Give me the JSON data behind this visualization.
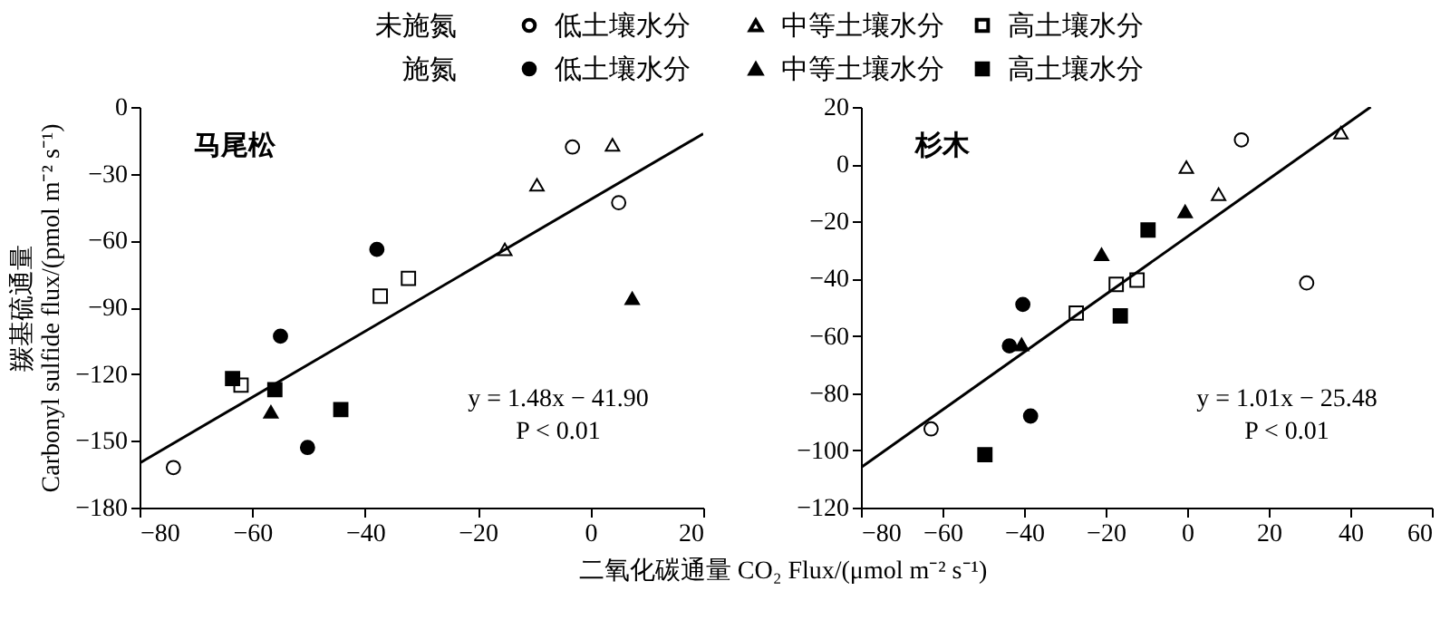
{
  "chart_data": [
    {
      "type": "scatter",
      "title": "马尾松",
      "ylabel": "羰基硫通量\nCarbonyl sulfide flux/(pmol m⁻² s⁻¹)",
      "xlabel": "二氧化碳通量 CO₂ Flux/(μmol m⁻² s⁻¹)",
      "xlim": [
        -80,
        20
      ],
      "xticks": [
        -80,
        -60,
        -40,
        -20,
        0,
        20
      ],
      "ylim": [
        -180,
        0
      ],
      "yticks": [
        -180,
        -150,
        -120,
        -90,
        -60,
        -30,
        0
      ],
      "grid": false,
      "legend": "top",
      "annotations": [
        "y = 1.48x − 41.90",
        "P < 0.01",
        "未施氮",
        "施氮"
      ],
      "series": [
        {
          "name": "低土壤水分",
          "marker": "circle",
          "color": "#ffffff",
          "x": [
            -74,
            -3.2,
            5
          ],
          "values": [
            -162,
            -18,
            -43
          ]
        },
        {
          "name": "中等土壤水分",
          "marker": "triangle",
          "color": "#ffffff",
          "x": [
            -15.2,
            -9.5,
            3.9
          ],
          "values": [
            -64,
            -35,
            -17
          ]
        },
        {
          "name": "高土壤水分",
          "marker": "square",
          "color": "#ffffff",
          "x": [
            -62,
            -37.3,
            -32.3
          ],
          "values": [
            -125,
            -85,
            -77
          ]
        },
        {
          "name": "低土壤水分",
          "marker": "circle",
          "color": "#000000",
          "x": [
            -55,
            -37.9,
            -50.2
          ],
          "values": [
            -103,
            -64,
            -153
          ]
        },
        {
          "name": "中等土壤水分",
          "marker": "triangle",
          "color": "#000000",
          "x": [
            -56.7,
            7.4
          ],
          "values": [
            -137,
            -86
          ]
        },
        {
          "name": "高土壤水分",
          "marker": "square",
          "color": "#000000",
          "x": [
            -63.5,
            -56,
            -44.3
          ],
          "values": [
            -122,
            -127,
            -136
          ]
        },
        {
          "type": "line",
          "color": "#000000",
          "x": [
            -80,
            20
          ],
          "values": [
            -160,
            -12
          ]
        }
      ]
    },
    {
      "type": "scatter",
      "title": "杉木",
      "xlim": [
        -80,
        60
      ],
      "xticks": [
        -80,
        -60,
        -40,
        -20,
        0,
        20,
        40,
        60
      ],
      "ylim": [
        -120,
        20
      ],
      "yticks": [
        -120,
        -100,
        -80,
        -60,
        -40,
        -20,
        0,
        20
      ],
      "grid": false,
      "annotations": [
        "y = 1.01x − 25.48",
        "P < 0.01"
      ],
      "series": [
        {
          "marker": "circle",
          "color": "#ffffff",
          "x": [
            -62.8,
            13.3,
            29.3
          ],
          "values": [
            -92.5,
            8.5,
            -41.5
          ]
        },
        {
          "marker": "triangle",
          "color": "#ffffff",
          "x": [
            -0.2,
            7.7,
            37.7
          ],
          "values": [
            -1,
            -10.5,
            11
          ]
        },
        {
          "marker": "square",
          "color": "#ffffff",
          "x": [
            -27.2,
            -17.4,
            -12.3
          ],
          "values": [
            -52,
            -42,
            -40.5
          ]
        },
        {
          "marker": "circle",
          "color": "#000000",
          "x": [
            -40.3,
            -43.6,
            -38.4
          ],
          "values": [
            -49,
            -63.5,
            -88
          ]
        },
        {
          "marker": "triangle",
          "color": "#000000",
          "x": [
            -40.6,
            -21,
            -0.5
          ],
          "values": [
            -63,
            -31.5,
            -16.5
          ]
        },
        {
          "marker": "square",
          "color": "#000000",
          "x": [
            -49.6,
            -16.4,
            -9.6
          ],
          "values": [
            -101.5,
            -53,
            -23
          ]
        },
        {
          "type": "line",
          "color": "#000000",
          "x": [
            -80,
            45
          ],
          "values": [
            -106,
            20
          ]
        }
      ]
    }
  ]
}
